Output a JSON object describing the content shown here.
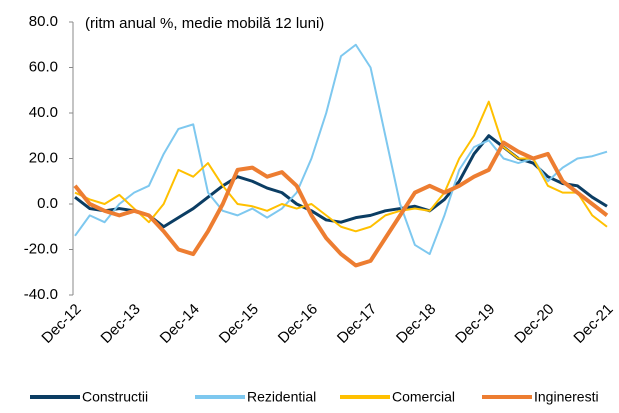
{
  "chart_data": {
    "type": "line",
    "annotation": "(ritm anual %, medie mobilă 12 luni)",
    "categories": [
      "Dec-12",
      null,
      null,
      null,
      "Dec-13",
      null,
      null,
      null,
      "Dec-14",
      null,
      null,
      null,
      "Dec-15",
      null,
      null,
      null,
      "Dec-16",
      null,
      null,
      null,
      "Dec-17",
      null,
      null,
      null,
      "Dec-18",
      null,
      null,
      null,
      "Dec-19",
      null,
      null,
      null,
      "Dec-20",
      null,
      null,
      null,
      "Dec-21"
    ],
    "series": [
      {
        "name": "Constructii",
        "color": "#0b3d63",
        "width": 3,
        "values": [
          3,
          -2,
          -3,
          -2,
          -3,
          -5,
          -10,
          -6,
          -2,
          3,
          8,
          12,
          10,
          7,
          5,
          0,
          -3,
          -7,
          -8,
          -6,
          -5,
          -3,
          -2,
          -1,
          -3,
          2,
          10,
          22,
          30,
          25,
          20,
          18,
          12,
          9,
          8,
          3,
          -1
        ]
      },
      {
        "name": "Rezidential",
        "color": "#7ec8ef",
        "width": 2,
        "values": [
          -14,
          -5,
          -8,
          0,
          5,
          8,
          22,
          33,
          35,
          5,
          -3,
          -5,
          -2,
          -6,
          -2,
          5,
          20,
          40,
          65,
          70,
          60,
          30,
          0,
          -18,
          -22,
          -5,
          15,
          25,
          28,
          20,
          18,
          20,
          10,
          16,
          20,
          21,
          23
        ]
      },
      {
        "name": "Comercial",
        "color": "#ffc000",
        "width": 2,
        "values": [
          5,
          2,
          0,
          4,
          -2,
          -8,
          0,
          15,
          12,
          18,
          8,
          0,
          -1,
          -3,
          0,
          -2,
          0,
          -5,
          -10,
          -12,
          -10,
          -5,
          -3,
          -2,
          -3,
          5,
          20,
          30,
          45,
          25,
          20,
          20,
          8,
          5,
          5,
          -5,
          -10
        ]
      },
      {
        "name": "Ingineresti",
        "color": "#ed7d31",
        "width": 4,
        "values": [
          8,
          0,
          -3,
          -5,
          -3,
          -5,
          -12,
          -20,
          -22,
          -12,
          0,
          15,
          16,
          12,
          14,
          8,
          -5,
          -15,
          -22,
          -27,
          -25,
          -15,
          -5,
          5,
          8,
          5,
          8,
          12,
          15,
          27,
          23,
          20,
          22,
          10,
          5,
          0,
          -5
        ]
      }
    ],
    "ylim": [
      -40,
      80
    ],
    "yticks": [
      {
        "value": -40,
        "label": "-40.0"
      },
      {
        "value": -20,
        "label": "-20.0"
      },
      {
        "value": 0,
        "label": "0.0"
      },
      {
        "value": 20,
        "label": "20.0"
      },
      {
        "value": 40,
        "label": "40.0"
      },
      {
        "value": 60,
        "label": "60.0"
      },
      {
        "value": 80,
        "label": "80.0"
      }
    ],
    "legend": "bottom"
  }
}
